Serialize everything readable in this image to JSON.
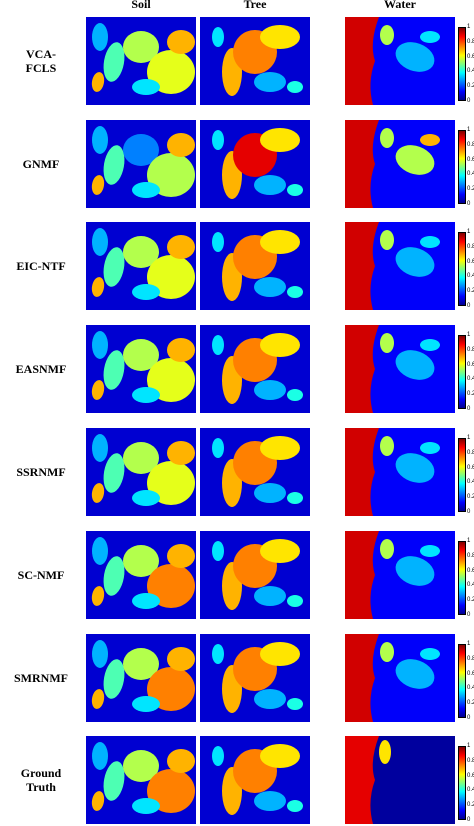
{
  "columns": [
    "Soil",
    "Tree",
    "Water"
  ],
  "rows": [
    {
      "label_lines": [
        "VCA-",
        "FCLS"
      ]
    },
    {
      "label_lines": [
        "GNMF"
      ]
    },
    {
      "label_lines": [
        "EIC-NTF"
      ]
    },
    {
      "label_lines": [
        "EASNMF"
      ]
    },
    {
      "label_lines": [
        "SSRNMF"
      ]
    },
    {
      "label_lines": [
        "SC-NMF"
      ]
    },
    {
      "label_lines": [
        "SMRNMF"
      ]
    },
    {
      "label_lines": [
        "Ground",
        "Truth"
      ]
    }
  ],
  "colorbar": {
    "ticks": [
      "1",
      "0.8",
      "0.6",
      "0.4",
      "0.2",
      "0"
    ],
    "colormap": "jet"
  }
}
